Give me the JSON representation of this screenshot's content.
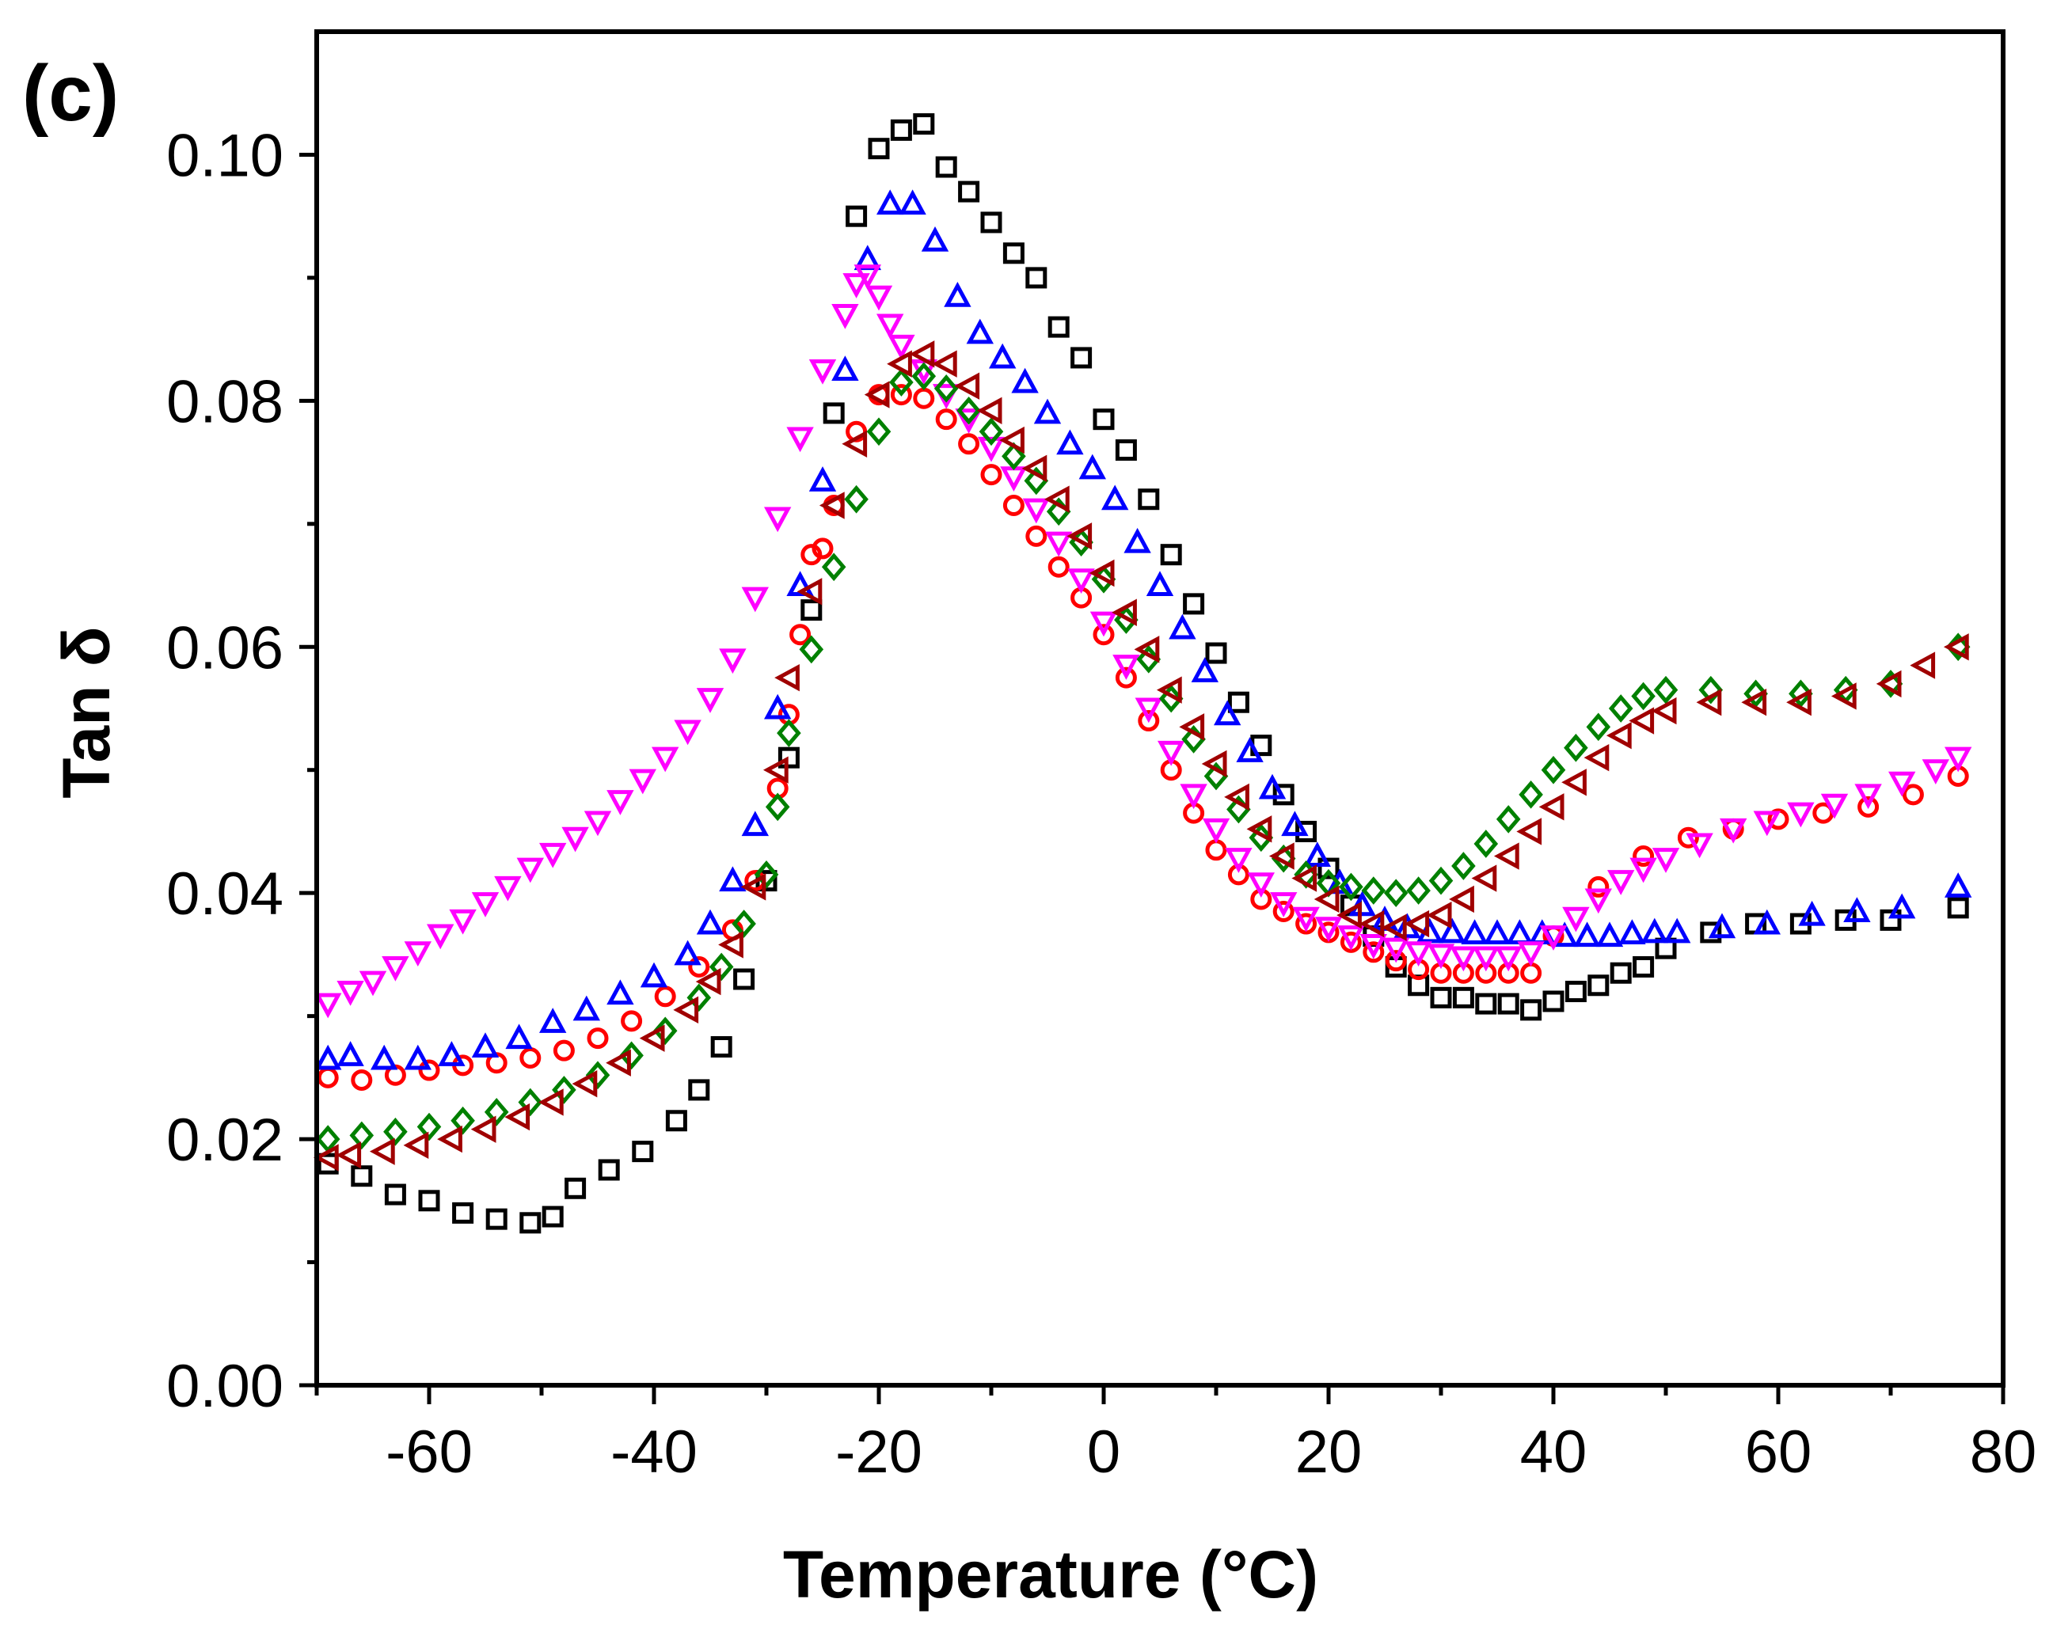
{
  "chart_data": {
    "type": "scatter",
    "panel_label": "(c)",
    "xlabel": "Temperature (°C)",
    "ylabel": "Tan δ",
    "xlim": [
      -70,
      80
    ],
    "ylim": [
      0.0,
      0.11
    ],
    "xticks": [
      -60,
      -40,
      -20,
      0,
      20,
      40,
      60,
      80
    ],
    "xtick_labels": [
      "-60",
      "-40",
      "-20",
      "0",
      "20",
      "40",
      "60",
      "80"
    ],
    "yticks": [
      0.0,
      0.02,
      0.04,
      0.06,
      0.08,
      0.1
    ],
    "ytick_labels": [
      "0.00",
      "0.02",
      "0.04",
      "0.06",
      "0.08",
      "0.10"
    ],
    "grid": false,
    "series": [
      {
        "name": "black squares",
        "color": "#000000",
        "marker": "square",
        "x": [
          -69,
          -66,
          -63,
          -60,
          -57,
          -54,
          -51,
          -49,
          -47,
          -44,
          -41,
          -38,
          -36,
          -34,
          -32,
          -30,
          -28,
          -26,
          -24,
          -22,
          -20,
          -18,
          -16,
          -14,
          -12,
          -10,
          -8,
          -6,
          -4,
          -2,
          0,
          2,
          4,
          6,
          8,
          10,
          12,
          14,
          16,
          18,
          20,
          22,
          24,
          26,
          28,
          30,
          32,
          34,
          36,
          38,
          40,
          42,
          44,
          46,
          48,
          50,
          54,
          58,
          62,
          66,
          70,
          76
        ],
        "y": [
          0.018,
          0.017,
          0.0155,
          0.015,
          0.014,
          0.0135,
          0.0132,
          0.0137,
          0.016,
          0.0175,
          0.019,
          0.0215,
          0.024,
          0.0275,
          0.033,
          0.041,
          0.051,
          0.063,
          0.079,
          0.095,
          0.1005,
          0.102,
          0.1025,
          0.099,
          0.097,
          0.0945,
          0.092,
          0.09,
          0.086,
          0.0835,
          0.0785,
          0.076,
          0.072,
          0.0675,
          0.0635,
          0.0595,
          0.0555,
          0.052,
          0.048,
          0.045,
          0.042,
          0.039,
          0.0365,
          0.034,
          0.0325,
          0.0315,
          0.0315,
          0.031,
          0.031,
          0.0305,
          0.0312,
          0.032,
          0.0325,
          0.0335,
          0.034,
          0.0355,
          0.0368,
          0.0375,
          0.0375,
          0.0378,
          0.0378,
          0.0388
        ]
      },
      {
        "name": "red circles",
        "color": "#ff0000",
        "marker": "circle",
        "x": [
          -69,
          -66,
          -63,
          -60,
          -57,
          -54,
          -51,
          -48,
          -45,
          -42,
          -39,
          -36,
          -33,
          -31,
          -29,
          -28,
          -27,
          -26,
          -25,
          -24,
          -22,
          -20,
          -18,
          -16,
          -14,
          -12,
          -10,
          -8,
          -6,
          -4,
          -2,
          0,
          2,
          4,
          6,
          8,
          10,
          12,
          14,
          16,
          18,
          20,
          22,
          24,
          26,
          28,
          30,
          32,
          34,
          36,
          38,
          40,
          44,
          48,
          52,
          56,
          60,
          64,
          68,
          72,
          76
        ],
        "y": [
          0.025,
          0.0248,
          0.0252,
          0.0256,
          0.026,
          0.0262,
          0.0266,
          0.0272,
          0.0282,
          0.0296,
          0.0316,
          0.034,
          0.037,
          0.041,
          0.0485,
          0.0545,
          0.061,
          0.0675,
          0.068,
          0.0715,
          0.0775,
          0.0805,
          0.0805,
          0.0802,
          0.0785,
          0.0765,
          0.074,
          0.0715,
          0.069,
          0.0665,
          0.064,
          0.061,
          0.0575,
          0.054,
          0.05,
          0.0465,
          0.0435,
          0.0415,
          0.0395,
          0.0385,
          0.0375,
          0.0368,
          0.036,
          0.0352,
          0.0345,
          0.0338,
          0.0335,
          0.0335,
          0.0335,
          0.0335,
          0.0335,
          0.0365,
          0.0405,
          0.043,
          0.0445,
          0.0452,
          0.046,
          0.0465,
          0.047,
          0.048,
          0.0495
        ]
      },
      {
        "name": "blue triangles",
        "color": "#0000ff",
        "marker": "triangle-up",
        "x": [
          -69,
          -67,
          -64,
          -61,
          -58,
          -55,
          -52,
          -49,
          -46,
          -43,
          -40,
          -37,
          -35,
          -33,
          -31,
          -29,
          -27,
          -25,
          -23,
          -21,
          -19,
          -17,
          -15,
          -13,
          -11,
          -9,
          -7,
          -5,
          -3,
          -1,
          1,
          3,
          5,
          7,
          9,
          11,
          13,
          15,
          17,
          19,
          21,
          23,
          25,
          27,
          29,
          31,
          33,
          35,
          37,
          39,
          41,
          43,
          45,
          47,
          49,
          51,
          55,
          59,
          63,
          67,
          71,
          76
        ],
        "y": [
          0.0265,
          0.0268,
          0.0265,
          0.0265,
          0.0268,
          0.0275,
          0.0282,
          0.0295,
          0.0305,
          0.0318,
          0.0332,
          0.035,
          0.0375,
          0.041,
          0.0455,
          0.055,
          0.065,
          0.0735,
          0.0825,
          0.0915,
          0.096,
          0.096,
          0.093,
          0.0885,
          0.0855,
          0.0835,
          0.0815,
          0.079,
          0.0765,
          0.0745,
          0.072,
          0.0685,
          0.065,
          0.0615,
          0.058,
          0.0545,
          0.0515,
          0.0485,
          0.0455,
          0.043,
          0.0408,
          0.039,
          0.0378,
          0.0372,
          0.0368,
          0.0368,
          0.0367,
          0.0367,
          0.0367,
          0.0367,
          0.0365,
          0.0365,
          0.0365,
          0.0367,
          0.0368,
          0.0368,
          0.0372,
          0.0375,
          0.0382,
          0.0385,
          0.0388,
          0.0405
        ]
      },
      {
        "name": "magenta triangles",
        "color": "#ff00ff",
        "marker": "triangle-down",
        "x": [
          -69,
          -67,
          -65,
          -63,
          -61,
          -59,
          -57,
          -55,
          -53,
          -51,
          -49,
          -47,
          -45,
          -43,
          -41,
          -39,
          -37,
          -35,
          -33,
          -31,
          -29,
          -27,
          -25,
          -23,
          -22,
          -21,
          -20,
          -19,
          -18,
          -16,
          -14,
          -12,
          -10,
          -8,
          -6,
          -4,
          -2,
          0,
          2,
          4,
          6,
          8,
          10,
          12,
          14,
          16,
          18,
          20,
          22,
          24,
          26,
          28,
          30,
          32,
          34,
          36,
          38,
          40,
          42,
          44,
          46,
          48,
          50,
          53,
          56,
          59,
          62,
          65,
          68,
          71,
          74,
          76
        ],
        "y": [
          0.031,
          0.032,
          0.0328,
          0.034,
          0.0352,
          0.0366,
          0.0378,
          0.0392,
          0.0405,
          0.042,
          0.0432,
          0.0445,
          0.0458,
          0.0475,
          0.0492,
          0.051,
          0.0532,
          0.0558,
          0.059,
          0.064,
          0.0705,
          0.077,
          0.0825,
          0.087,
          0.0895,
          0.0902,
          0.0885,
          0.0862,
          0.0845,
          0.0825,
          0.0805,
          0.0785,
          0.0762,
          0.0738,
          0.0712,
          0.0685,
          0.0655,
          0.062,
          0.0585,
          0.055,
          0.0515,
          0.048,
          0.0452,
          0.0428,
          0.0408,
          0.0392,
          0.038,
          0.0372,
          0.0365,
          0.0358,
          0.0355,
          0.0352,
          0.035,
          0.0348,
          0.0348,
          0.0348,
          0.0352,
          0.0365,
          0.038,
          0.0395,
          0.041,
          0.042,
          0.0428,
          0.044,
          0.0452,
          0.0458,
          0.0465,
          0.0472,
          0.048,
          0.049,
          0.05,
          0.051
        ]
      },
      {
        "name": "green diamonds",
        "color": "#008000",
        "marker": "diamond",
        "x": [
          -69,
          -66,
          -63,
          -60,
          -57,
          -54,
          -51,
          -48,
          -45,
          -42,
          -39,
          -36,
          -34,
          -32,
          -30,
          -29,
          -28,
          -26,
          -24,
          -22,
          -20,
          -18,
          -16,
          -14,
          -12,
          -10,
          -8,
          -6,
          -4,
          -2,
          0,
          2,
          4,
          6,
          8,
          10,
          12,
          14,
          16,
          18,
          20,
          22,
          24,
          26,
          28,
          30,
          32,
          34,
          36,
          38,
          40,
          42,
          44,
          46,
          48,
          50,
          54,
          58,
          62,
          66,
          70,
          76
        ],
        "y": [
          0.02,
          0.0203,
          0.0206,
          0.021,
          0.0215,
          0.0222,
          0.023,
          0.024,
          0.0252,
          0.0268,
          0.0288,
          0.0315,
          0.034,
          0.0375,
          0.0415,
          0.047,
          0.053,
          0.0598,
          0.0665,
          0.072,
          0.0775,
          0.0815,
          0.082,
          0.081,
          0.0792,
          0.0775,
          0.0755,
          0.0735,
          0.071,
          0.0685,
          0.0655,
          0.0622,
          0.059,
          0.0558,
          0.0525,
          0.0495,
          0.0468,
          0.0445,
          0.0428,
          0.0415,
          0.0408,
          0.0405,
          0.0402,
          0.04,
          0.0402,
          0.041,
          0.0422,
          0.044,
          0.046,
          0.048,
          0.05,
          0.0518,
          0.0535,
          0.055,
          0.056,
          0.0565,
          0.0565,
          0.0562,
          0.0562,
          0.0565,
          0.057,
          0.06
        ]
      },
      {
        "name": "dark red triangles",
        "color": "#a00000",
        "marker": "triangle-left",
        "x": [
          -69,
          -67,
          -64,
          -61,
          -58,
          -55,
          -52,
          -49,
          -46,
          -43,
          -40,
          -37,
          -35,
          -33,
          -31,
          -29,
          -28,
          -26,
          -24,
          -22,
          -20,
          -18,
          -16,
          -14,
          -12,
          -10,
          -8,
          -6,
          -4,
          -2,
          0,
          2,
          4,
          6,
          8,
          10,
          12,
          14,
          16,
          18,
          20,
          22,
          24,
          26,
          28,
          30,
          32,
          34,
          36,
          38,
          40,
          42,
          44,
          46,
          48,
          50,
          54,
          58,
          62,
          66,
          70,
          73,
          76
        ],
        "y": [
          0.0185,
          0.0187,
          0.019,
          0.0195,
          0.02,
          0.0208,
          0.0218,
          0.023,
          0.0245,
          0.0262,
          0.0282,
          0.0305,
          0.0328,
          0.0358,
          0.0405,
          0.05,
          0.0575,
          0.0645,
          0.0715,
          0.0765,
          0.0805,
          0.083,
          0.0838,
          0.083,
          0.0812,
          0.0792,
          0.0768,
          0.0745,
          0.072,
          0.069,
          0.066,
          0.0628,
          0.0598,
          0.0565,
          0.0535,
          0.0505,
          0.0478,
          0.0452,
          0.043,
          0.0412,
          0.0395,
          0.0382,
          0.0375,
          0.0372,
          0.0375,
          0.0382,
          0.0395,
          0.0412,
          0.043,
          0.045,
          0.047,
          0.049,
          0.051,
          0.0528,
          0.054,
          0.0548,
          0.0555,
          0.0555,
          0.0555,
          0.056,
          0.057,
          0.0585,
          0.06
        ]
      }
    ]
  }
}
